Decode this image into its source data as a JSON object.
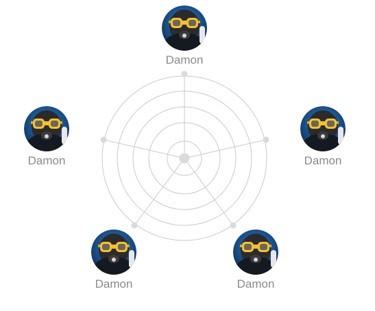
{
  "people": [
    {
      "name": "Damon",
      "avatar_icon": "diver-avatar-icon"
    },
    {
      "name": "Damon",
      "avatar_icon": "diver-avatar-icon"
    },
    {
      "name": "Damon",
      "avatar_icon": "diver-avatar-icon"
    },
    {
      "name": "Damon",
      "avatar_icon": "diver-avatar-icon"
    },
    {
      "name": "Damon",
      "avatar_icon": "diver-avatar-icon"
    }
  ],
  "colors": {
    "ring": "#c9c9c9",
    "dot": "#dadada",
    "label": "#8a8a8a",
    "mask": "#f2c230",
    "water": "#1c5aa0"
  }
}
